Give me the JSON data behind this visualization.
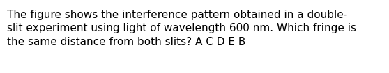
{
  "text_line1": "The figure shows the interference pattern obtained in a double-",
  "text_line2": "slit experiment using light of wavelength 600 nm. Which fringe is",
  "text_line3": "the same distance from both slits? A C D E B",
  "background_color": "#ffffff",
  "text_color": "#000000",
  "font_size": 11.0,
  "fig_width": 5.58,
  "fig_height": 1.05,
  "dpi": 100
}
